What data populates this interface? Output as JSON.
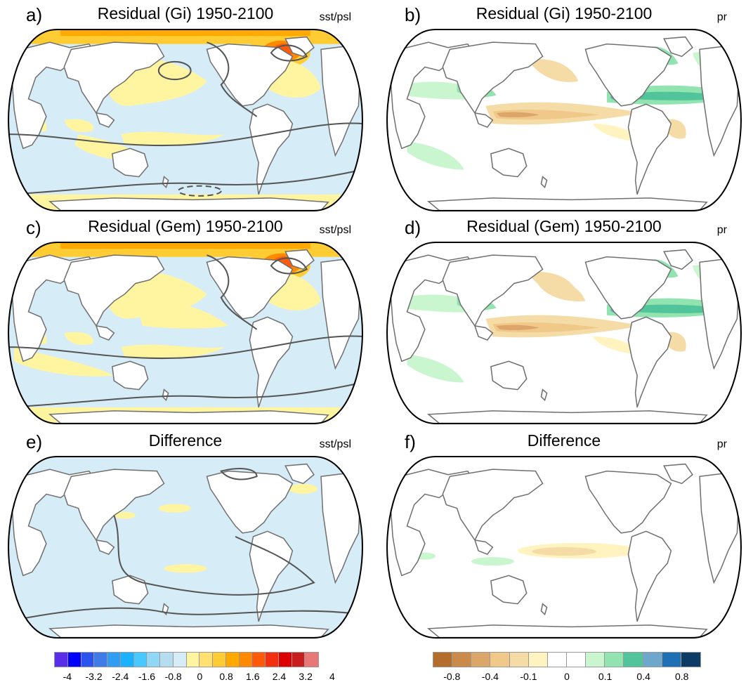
{
  "panels": [
    {
      "letter": "a)",
      "title": "Residual (Gi) 1950-2100",
      "variable": "sst/psl",
      "kind": "sst",
      "variant": "gi"
    },
    {
      "letter": "b)",
      "title": "Residual (Gi) 1950-2100",
      "variable": "pr",
      "kind": "pr",
      "variant": "gi"
    },
    {
      "letter": "c)",
      "title": "Residual (Gem) 1950-2100",
      "variable": "sst/psl",
      "kind": "sst",
      "variant": "gem"
    },
    {
      "letter": "d)",
      "title": "Residual (Gem) 1950-2100",
      "variable": "pr",
      "kind": "pr",
      "variant": "gem"
    },
    {
      "letter": "e)",
      "title": "Difference",
      "variable": "sst/psl",
      "kind": "sst",
      "variant": "diff"
    },
    {
      "letter": "f)",
      "title": "Difference",
      "variable": "pr",
      "kind": "pr",
      "variant": "diff"
    }
  ],
  "colorbars": {
    "sst": {
      "colors": [
        "#5a2ee8",
        "#0000ff",
        "#2b53ee",
        "#3f7ce8",
        "#2f9df2",
        "#1ab1ff",
        "#49c8ff",
        "#8fd7f5",
        "#b6dcef",
        "#d6ecf7",
        "#fff5a0",
        "#ffe070",
        "#ffcc33",
        "#ffa800",
        "#ff8a00",
        "#ff5a0a",
        "#f03010",
        "#dc0000",
        "#c81e1e",
        "#e87878"
      ],
      "labels": [
        "-4",
        "-3.2",
        "-2.4",
        "-1.6",
        "-0.8",
        "0",
        "0.8",
        "1.6",
        "2.4",
        "3.2",
        "4"
      ]
    },
    "pr": {
      "colors": [
        "#b56d2c",
        "#c98a4a",
        "#dca66a",
        "#f0c98a",
        "#f5dca6",
        "#fff3c0",
        "#ffffff",
        "#ffffff",
        "#c9f5cf",
        "#91e3b0",
        "#52c49b",
        "#6fa7cc",
        "#1e6fb3",
        "#0c3b66"
      ],
      "labels": [
        "-0.8",
        "-0.4",
        "-0.1",
        "0",
        "0.1",
        "0.4",
        "0.8"
      ]
    }
  }
}
